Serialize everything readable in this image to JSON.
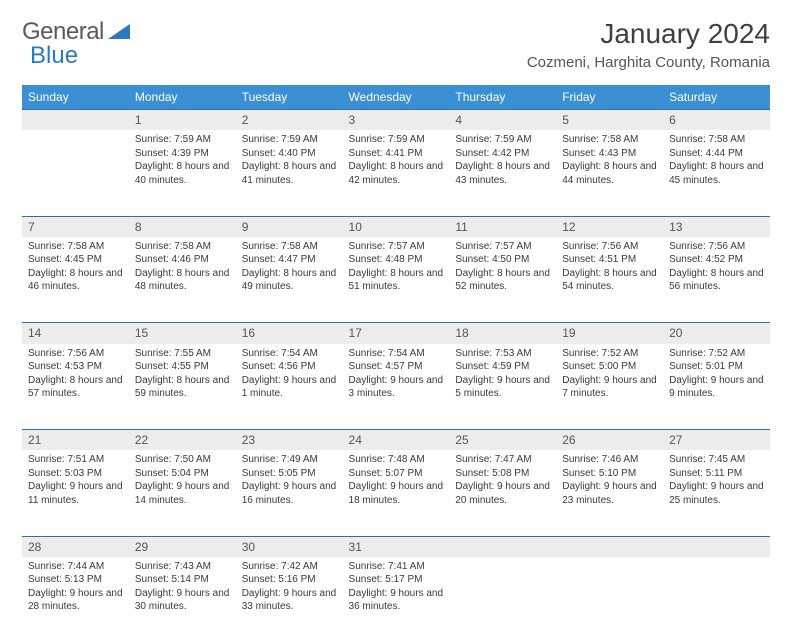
{
  "logo": {
    "text1": "General",
    "text2": "Blue"
  },
  "title": "January 2024",
  "location": "Cozmeni, Harghita County, Romania",
  "colors": {
    "header_bg": "#3b8fd4",
    "header_text": "#ffffff",
    "daynum_bg": "#ececec",
    "daynum_border": "#2f6fa8",
    "logo_gray": "#5a5a5a",
    "logo_blue": "#2a7ac0"
  },
  "weekdays": [
    "Sunday",
    "Monday",
    "Tuesday",
    "Wednesday",
    "Thursday",
    "Friday",
    "Saturday"
  ],
  "weeks": [
    [
      null,
      {
        "n": "1",
        "sr": "7:59 AM",
        "ss": "4:39 PM",
        "dl": "8 hours and 40 minutes."
      },
      {
        "n": "2",
        "sr": "7:59 AM",
        "ss": "4:40 PM",
        "dl": "8 hours and 41 minutes."
      },
      {
        "n": "3",
        "sr": "7:59 AM",
        "ss": "4:41 PM",
        "dl": "8 hours and 42 minutes."
      },
      {
        "n": "4",
        "sr": "7:59 AM",
        "ss": "4:42 PM",
        "dl": "8 hours and 43 minutes."
      },
      {
        "n": "5",
        "sr": "7:58 AM",
        "ss": "4:43 PM",
        "dl": "8 hours and 44 minutes."
      },
      {
        "n": "6",
        "sr": "7:58 AM",
        "ss": "4:44 PM",
        "dl": "8 hours and 45 minutes."
      }
    ],
    [
      {
        "n": "7",
        "sr": "7:58 AM",
        "ss": "4:45 PM",
        "dl": "8 hours and 46 minutes."
      },
      {
        "n": "8",
        "sr": "7:58 AM",
        "ss": "4:46 PM",
        "dl": "8 hours and 48 minutes."
      },
      {
        "n": "9",
        "sr": "7:58 AM",
        "ss": "4:47 PM",
        "dl": "8 hours and 49 minutes."
      },
      {
        "n": "10",
        "sr": "7:57 AM",
        "ss": "4:48 PM",
        "dl": "8 hours and 51 minutes."
      },
      {
        "n": "11",
        "sr": "7:57 AM",
        "ss": "4:50 PM",
        "dl": "8 hours and 52 minutes."
      },
      {
        "n": "12",
        "sr": "7:56 AM",
        "ss": "4:51 PM",
        "dl": "8 hours and 54 minutes."
      },
      {
        "n": "13",
        "sr": "7:56 AM",
        "ss": "4:52 PM",
        "dl": "8 hours and 56 minutes."
      }
    ],
    [
      {
        "n": "14",
        "sr": "7:56 AM",
        "ss": "4:53 PM",
        "dl": "8 hours and 57 minutes."
      },
      {
        "n": "15",
        "sr": "7:55 AM",
        "ss": "4:55 PM",
        "dl": "8 hours and 59 minutes."
      },
      {
        "n": "16",
        "sr": "7:54 AM",
        "ss": "4:56 PM",
        "dl": "9 hours and 1 minute."
      },
      {
        "n": "17",
        "sr": "7:54 AM",
        "ss": "4:57 PM",
        "dl": "9 hours and 3 minutes."
      },
      {
        "n": "18",
        "sr": "7:53 AM",
        "ss": "4:59 PM",
        "dl": "9 hours and 5 minutes."
      },
      {
        "n": "19",
        "sr": "7:52 AM",
        "ss": "5:00 PM",
        "dl": "9 hours and 7 minutes."
      },
      {
        "n": "20",
        "sr": "7:52 AM",
        "ss": "5:01 PM",
        "dl": "9 hours and 9 minutes."
      }
    ],
    [
      {
        "n": "21",
        "sr": "7:51 AM",
        "ss": "5:03 PM",
        "dl": "9 hours and 11 minutes."
      },
      {
        "n": "22",
        "sr": "7:50 AM",
        "ss": "5:04 PM",
        "dl": "9 hours and 14 minutes."
      },
      {
        "n": "23",
        "sr": "7:49 AM",
        "ss": "5:05 PM",
        "dl": "9 hours and 16 minutes."
      },
      {
        "n": "24",
        "sr": "7:48 AM",
        "ss": "5:07 PM",
        "dl": "9 hours and 18 minutes."
      },
      {
        "n": "25",
        "sr": "7:47 AM",
        "ss": "5:08 PM",
        "dl": "9 hours and 20 minutes."
      },
      {
        "n": "26",
        "sr": "7:46 AM",
        "ss": "5:10 PM",
        "dl": "9 hours and 23 minutes."
      },
      {
        "n": "27",
        "sr": "7:45 AM",
        "ss": "5:11 PM",
        "dl": "9 hours and 25 minutes."
      }
    ],
    [
      {
        "n": "28",
        "sr": "7:44 AM",
        "ss": "5:13 PM",
        "dl": "9 hours and 28 minutes."
      },
      {
        "n": "29",
        "sr": "7:43 AM",
        "ss": "5:14 PM",
        "dl": "9 hours and 30 minutes."
      },
      {
        "n": "30",
        "sr": "7:42 AM",
        "ss": "5:16 PM",
        "dl": "9 hours and 33 minutes."
      },
      {
        "n": "31",
        "sr": "7:41 AM",
        "ss": "5:17 PM",
        "dl": "9 hours and 36 minutes."
      },
      null,
      null,
      null
    ]
  ],
  "labels": {
    "sunrise": "Sunrise:",
    "sunset": "Sunset:",
    "daylight": "Daylight:"
  }
}
